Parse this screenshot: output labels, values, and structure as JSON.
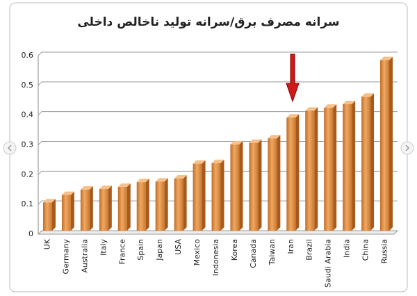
{
  "chart_data": {
    "type": "bar",
    "title": "سرانه مصرف برق/سرانه تولید ناخالص داخلی",
    "categories": [
      "UK",
      "Germany",
      "Australia",
      "Italy",
      "France",
      "Spain",
      "Japan",
      "USA",
      "Mexico",
      "Indonesia",
      "Korea",
      "Canada",
      "Taiwan",
      "Iran",
      "Brazil",
      "Saudi Arabia",
      "India",
      "China",
      "Russia"
    ],
    "values": [
      0.095,
      0.12,
      0.138,
      0.14,
      0.147,
      0.163,
      0.165,
      0.175,
      0.225,
      0.227,
      0.29,
      0.295,
      0.31,
      0.38,
      0.403,
      0.413,
      0.425,
      0.45,
      0.573
    ],
    "color": "#d9893f",
    "ylim": [
      0,
      0.6
    ],
    "yticks": [
      0,
      0.1,
      0.2,
      0.3,
      0.4,
      0.5,
      0.6
    ],
    "grid": true
  }
}
